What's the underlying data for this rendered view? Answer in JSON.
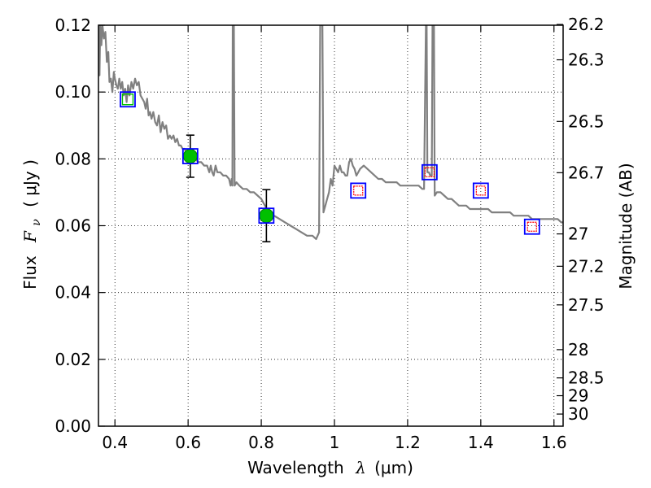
{
  "chart_data": {
    "type": "scatter",
    "xlabel_text": "Wavelength",
    "xlabel_symbol": "λ",
    "xlabel_unit": "(μm)",
    "ylabel_text": "Flux",
    "ylabel_symbol": "F",
    "ylabel_subscript": "ν",
    "ylabel_unit": "( μJy )",
    "y2label": "Magnitude (AB)",
    "xlim": [
      0.355,
      1.625
    ],
    "ylim": [
      0.0,
      0.12
    ],
    "grid": true,
    "colors": {
      "model": "#808080",
      "photometry_fill": "#00c000",
      "model_box": "#0000ff",
      "upper_box_inner": "#ff0000",
      "measured_box_inner": "#00c000",
      "errorbar": "#000000"
    },
    "x_ticks": [
      {
        "value": 0.4,
        "label": "0.4"
      },
      {
        "value": 0.6,
        "label": "0.6"
      },
      {
        "value": 0.8,
        "label": "0.8"
      },
      {
        "value": 1.0,
        "label": "1"
      },
      {
        "value": 1.2,
        "label": "1.2"
      },
      {
        "value": 1.4,
        "label": "1.4"
      },
      {
        "value": 1.6,
        "label": "1.6"
      }
    ],
    "y_ticks": [
      {
        "value": 0.0,
        "label": "0.00"
      },
      {
        "value": 0.02,
        "label": "0.02"
      },
      {
        "value": 0.04,
        "label": "0.04"
      },
      {
        "value": 0.06,
        "label": "0.06"
      },
      {
        "value": 0.08,
        "label": "0.08"
      },
      {
        "value": 0.1,
        "label": "0.10"
      },
      {
        "value": 0.12,
        "label": "0.12"
      }
    ],
    "y2_ticks": [
      {
        "value": 26.2,
        "label": "26.2"
      },
      {
        "value": 26.3,
        "label": "26.3"
      },
      {
        "value": 26.5,
        "label": "26.5"
      },
      {
        "value": 26.7,
        "label": "26.7"
      },
      {
        "value": 27.0,
        "label": "27"
      },
      {
        "value": 27.2,
        "label": "27.2"
      },
      {
        "value": 27.5,
        "label": "27.5"
      },
      {
        "value": 28.0,
        "label": "28"
      },
      {
        "value": 28.5,
        "label": "28.5"
      },
      {
        "value": 29.0,
        "label": "29"
      },
      {
        "value": 30.0,
        "label": "30"
      }
    ],
    "model_sed": [
      [
        0.355,
        0.122
      ],
      [
        0.358,
        0.105
      ],
      [
        0.36,
        0.121
      ],
      [
        0.363,
        0.114
      ],
      [
        0.366,
        0.12
      ],
      [
        0.37,
        0.116
      ],
      [
        0.374,
        0.118
      ],
      [
        0.378,
        0.109
      ],
      [
        0.382,
        0.112
      ],
      [
        0.385,
        0.103
      ],
      [
        0.389,
        0.104
      ],
      [
        0.393,
        0.1
      ],
      [
        0.397,
        0.106
      ],
      [
        0.4,
        0.104
      ],
      [
        0.404,
        0.102
      ],
      [
        0.408,
        0.101
      ],
      [
        0.412,
        0.104
      ],
      [
        0.416,
        0.101
      ],
      [
        0.42,
        0.103
      ],
      [
        0.424,
        0.099
      ],
      [
        0.428,
        0.101
      ],
      [
        0.432,
        0.097
      ],
      [
        0.436,
        0.102
      ],
      [
        0.44,
        0.099
      ],
      [
        0.445,
        0.103
      ],
      [
        0.45,
        0.101
      ],
      [
        0.455,
        0.104
      ],
      [
        0.46,
        0.102
      ],
      [
        0.465,
        0.103
      ],
      [
        0.47,
        0.099
      ],
      [
        0.475,
        0.098
      ],
      [
        0.48,
        0.097
      ],
      [
        0.484,
        0.095
      ],
      [
        0.488,
        0.098
      ],
      [
        0.492,
        0.093
      ],
      [
        0.496,
        0.094
      ],
      [
        0.5,
        0.092
      ],
      [
        0.505,
        0.094
      ],
      [
        0.51,
        0.091
      ],
      [
        0.515,
        0.09
      ],
      [
        0.52,
        0.093
      ],
      [
        0.525,
        0.088
      ],
      [
        0.53,
        0.091
      ],
      [
        0.535,
        0.089
      ],
      [
        0.54,
        0.09
      ],
      [
        0.545,
        0.086
      ],
      [
        0.55,
        0.087
      ],
      [
        0.555,
        0.086
      ],
      [
        0.56,
        0.087
      ],
      [
        0.565,
        0.085
      ],
      [
        0.57,
        0.086
      ],
      [
        0.575,
        0.084
      ],
      [
        0.58,
        0.084
      ],
      [
        0.585,
        0.083
      ],
      [
        0.59,
        0.083
      ],
      [
        0.595,
        0.082
      ],
      [
        0.6,
        0.082
      ],
      [
        0.606,
        0.081
      ],
      [
        0.612,
        0.08
      ],
      [
        0.62,
        0.08
      ],
      [
        0.628,
        0.079
      ],
      [
        0.636,
        0.079
      ],
      [
        0.644,
        0.078
      ],
      [
        0.652,
        0.078
      ],
      [
        0.658,
        0.076
      ],
      [
        0.662,
        0.078
      ],
      [
        0.666,
        0.076
      ],
      [
        0.67,
        0.075
      ],
      [
        0.675,
        0.078
      ],
      [
        0.68,
        0.076
      ],
      [
        0.688,
        0.076
      ],
      [
        0.696,
        0.075
      ],
      [
        0.704,
        0.075
      ],
      [
        0.712,
        0.074
      ],
      [
        0.716,
        0.072
      ],
      [
        0.719,
        0.074
      ],
      [
        0.721,
        0.072
      ],
      [
        0.722,
        0.12
      ],
      [
        0.725,
        0.12
      ],
      [
        0.727,
        0.072
      ],
      [
        0.732,
        0.073
      ],
      [
        0.74,
        0.072
      ],
      [
        0.75,
        0.071
      ],
      [
        0.76,
        0.071
      ],
      [
        0.77,
        0.07
      ],
      [
        0.78,
        0.07
      ],
      [
        0.79,
        0.069
      ],
      [
        0.8,
        0.068
      ],
      [
        0.81,
        0.066
      ],
      [
        0.82,
        0.064
      ],
      [
        0.835,
        0.063
      ],
      [
        0.85,
        0.062
      ],
      [
        0.865,
        0.061
      ],
      [
        0.88,
        0.06
      ],
      [
        0.895,
        0.059
      ],
      [
        0.91,
        0.058
      ],
      [
        0.925,
        0.057
      ],
      [
        0.94,
        0.057
      ],
      [
        0.95,
        0.056
      ],
      [
        0.958,
        0.058
      ],
      [
        0.961,
        0.12
      ],
      [
        0.967,
        0.12
      ],
      [
        0.97,
        0.064
      ],
      [
        0.975,
        0.066
      ],
      [
        0.98,
        0.068
      ],
      [
        0.985,
        0.07
      ],
      [
        0.99,
        0.074
      ],
      [
        0.995,
        0.072
      ],
      [
        1.0,
        0.078
      ],
      [
        1.005,
        0.077
      ],
      [
        1.01,
        0.076
      ],
      [
        1.015,
        0.078
      ],
      [
        1.02,
        0.076
      ],
      [
        1.025,
        0.076
      ],
      [
        1.03,
        0.075
      ],
      [
        1.035,
        0.075
      ],
      [
        1.04,
        0.079
      ],
      [
        1.045,
        0.08
      ],
      [
        1.05,
        0.078
      ],
      [
        1.055,
        0.077
      ],
      [
        1.06,
        0.075
      ],
      [
        1.07,
        0.077
      ],
      [
        1.08,
        0.078
      ],
      [
        1.09,
        0.077
      ],
      [
        1.1,
        0.076
      ],
      [
        1.11,
        0.075
      ],
      [
        1.12,
        0.074
      ],
      [
        1.13,
        0.074
      ],
      [
        1.14,
        0.073
      ],
      [
        1.15,
        0.073
      ],
      [
        1.16,
        0.073
      ],
      [
        1.17,
        0.073
      ],
      [
        1.18,
        0.072
      ],
      [
        1.19,
        0.072
      ],
      [
        1.2,
        0.072
      ],
      [
        1.21,
        0.072
      ],
      [
        1.22,
        0.072
      ],
      [
        1.23,
        0.072
      ],
      [
        1.24,
        0.071
      ],
      [
        1.245,
        0.071
      ],
      [
        1.25,
        0.12
      ],
      [
        1.252,
        0.12
      ],
      [
        1.254,
        0.076
      ],
      [
        1.258,
        0.076
      ],
      [
        1.262,
        0.075
      ],
      [
        1.266,
        0.075
      ],
      [
        1.268,
        0.12
      ],
      [
        1.272,
        0.12
      ],
      [
        1.274,
        0.069
      ],
      [
        1.28,
        0.07
      ],
      [
        1.29,
        0.07
      ],
      [
        1.3,
        0.069
      ],
      [
        1.31,
        0.068
      ],
      [
        1.32,
        0.068
      ],
      [
        1.33,
        0.067
      ],
      [
        1.34,
        0.066
      ],
      [
        1.35,
        0.066
      ],
      [
        1.36,
        0.066
      ],
      [
        1.37,
        0.065
      ],
      [
        1.38,
        0.065
      ],
      [
        1.39,
        0.065
      ],
      [
        1.4,
        0.065
      ],
      [
        1.41,
        0.065
      ],
      [
        1.42,
        0.065
      ],
      [
        1.43,
        0.064
      ],
      [
        1.44,
        0.064
      ],
      [
        1.45,
        0.064
      ],
      [
        1.46,
        0.064
      ],
      [
        1.47,
        0.064
      ],
      [
        1.48,
        0.064
      ],
      [
        1.49,
        0.063
      ],
      [
        1.5,
        0.063
      ],
      [
        1.51,
        0.063
      ],
      [
        1.52,
        0.063
      ],
      [
        1.53,
        0.063
      ],
      [
        1.54,
        0.062
      ],
      [
        1.55,
        0.062
      ],
      [
        1.56,
        0.062
      ],
      [
        1.57,
        0.062
      ],
      [
        1.58,
        0.062
      ],
      [
        1.59,
        0.062
      ],
      [
        1.6,
        0.062
      ],
      [
        1.61,
        0.062
      ],
      [
        1.62,
        0.061
      ],
      [
        1.625,
        0.061
      ]
    ],
    "photometry": [
      {
        "x": 0.435,
        "y": 0.0978,
        "kind": "upper"
      },
      {
        "x": 0.606,
        "y": 0.0808,
        "kind": "detected",
        "err": 0.0063
      },
      {
        "x": 0.814,
        "y": 0.063,
        "kind": "detected",
        "err": 0.0078
      },
      {
        "x": 1.065,
        "y": 0.0705,
        "kind": "model"
      },
      {
        "x": 1.26,
        "y": 0.076,
        "kind": "model"
      },
      {
        "x": 1.4,
        "y": 0.0705,
        "kind": "model"
      },
      {
        "x": 1.54,
        "y": 0.0597,
        "kind": "model"
      }
    ],
    "model_boxes": [
      {
        "x": 0.435,
        "y": 0.0978
      },
      {
        "x": 0.606,
        "y": 0.0808
      },
      {
        "x": 0.814,
        "y": 0.063
      },
      {
        "x": 1.065,
        "y": 0.0705
      },
      {
        "x": 1.26,
        "y": 0.076
      },
      {
        "x": 1.4,
        "y": 0.0705
      },
      {
        "x": 1.54,
        "y": 0.0597
      }
    ]
  }
}
